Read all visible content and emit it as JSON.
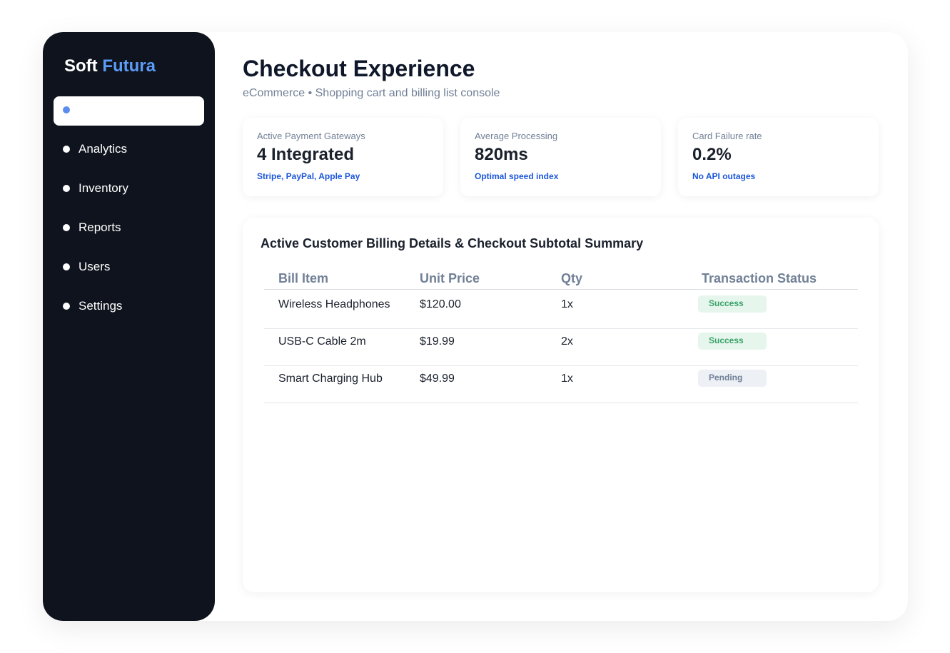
{
  "brand": {
    "first": "Soft",
    "second": "Futura"
  },
  "nav": [
    "Analytics",
    "Inventory",
    "Reports",
    "Users",
    "Settings"
  ],
  "header": {
    "title": "Checkout Experience",
    "subtitle": "eCommerce • Shopping cart and billing list console"
  },
  "cards": [
    {
      "label": "Active Payment Gateways",
      "value": "4 Integrated",
      "note": "Stripe, PayPal, Apple Pay"
    },
    {
      "label": "Average Processing",
      "value": "820ms",
      "note": "Optimal speed index"
    },
    {
      "label": "Card Failure rate",
      "value": "0.2%",
      "note": "No API outages"
    }
  ],
  "table": {
    "title": "Active Customer Billing Details & Checkout Subtotal Summary",
    "columns": [
      "Bill Item",
      "Unit Price",
      "Qty",
      "Transaction Status"
    ],
    "rows": [
      [
        "Wireless Headphones",
        "$120.00",
        "1x",
        "Success"
      ],
      [
        "USB-C Cable 2m",
        "$19.99",
        "2x",
        "Success"
      ],
      [
        "Smart Charging Hub",
        "$49.99",
        "1x",
        "Pending"
      ]
    ]
  }
}
